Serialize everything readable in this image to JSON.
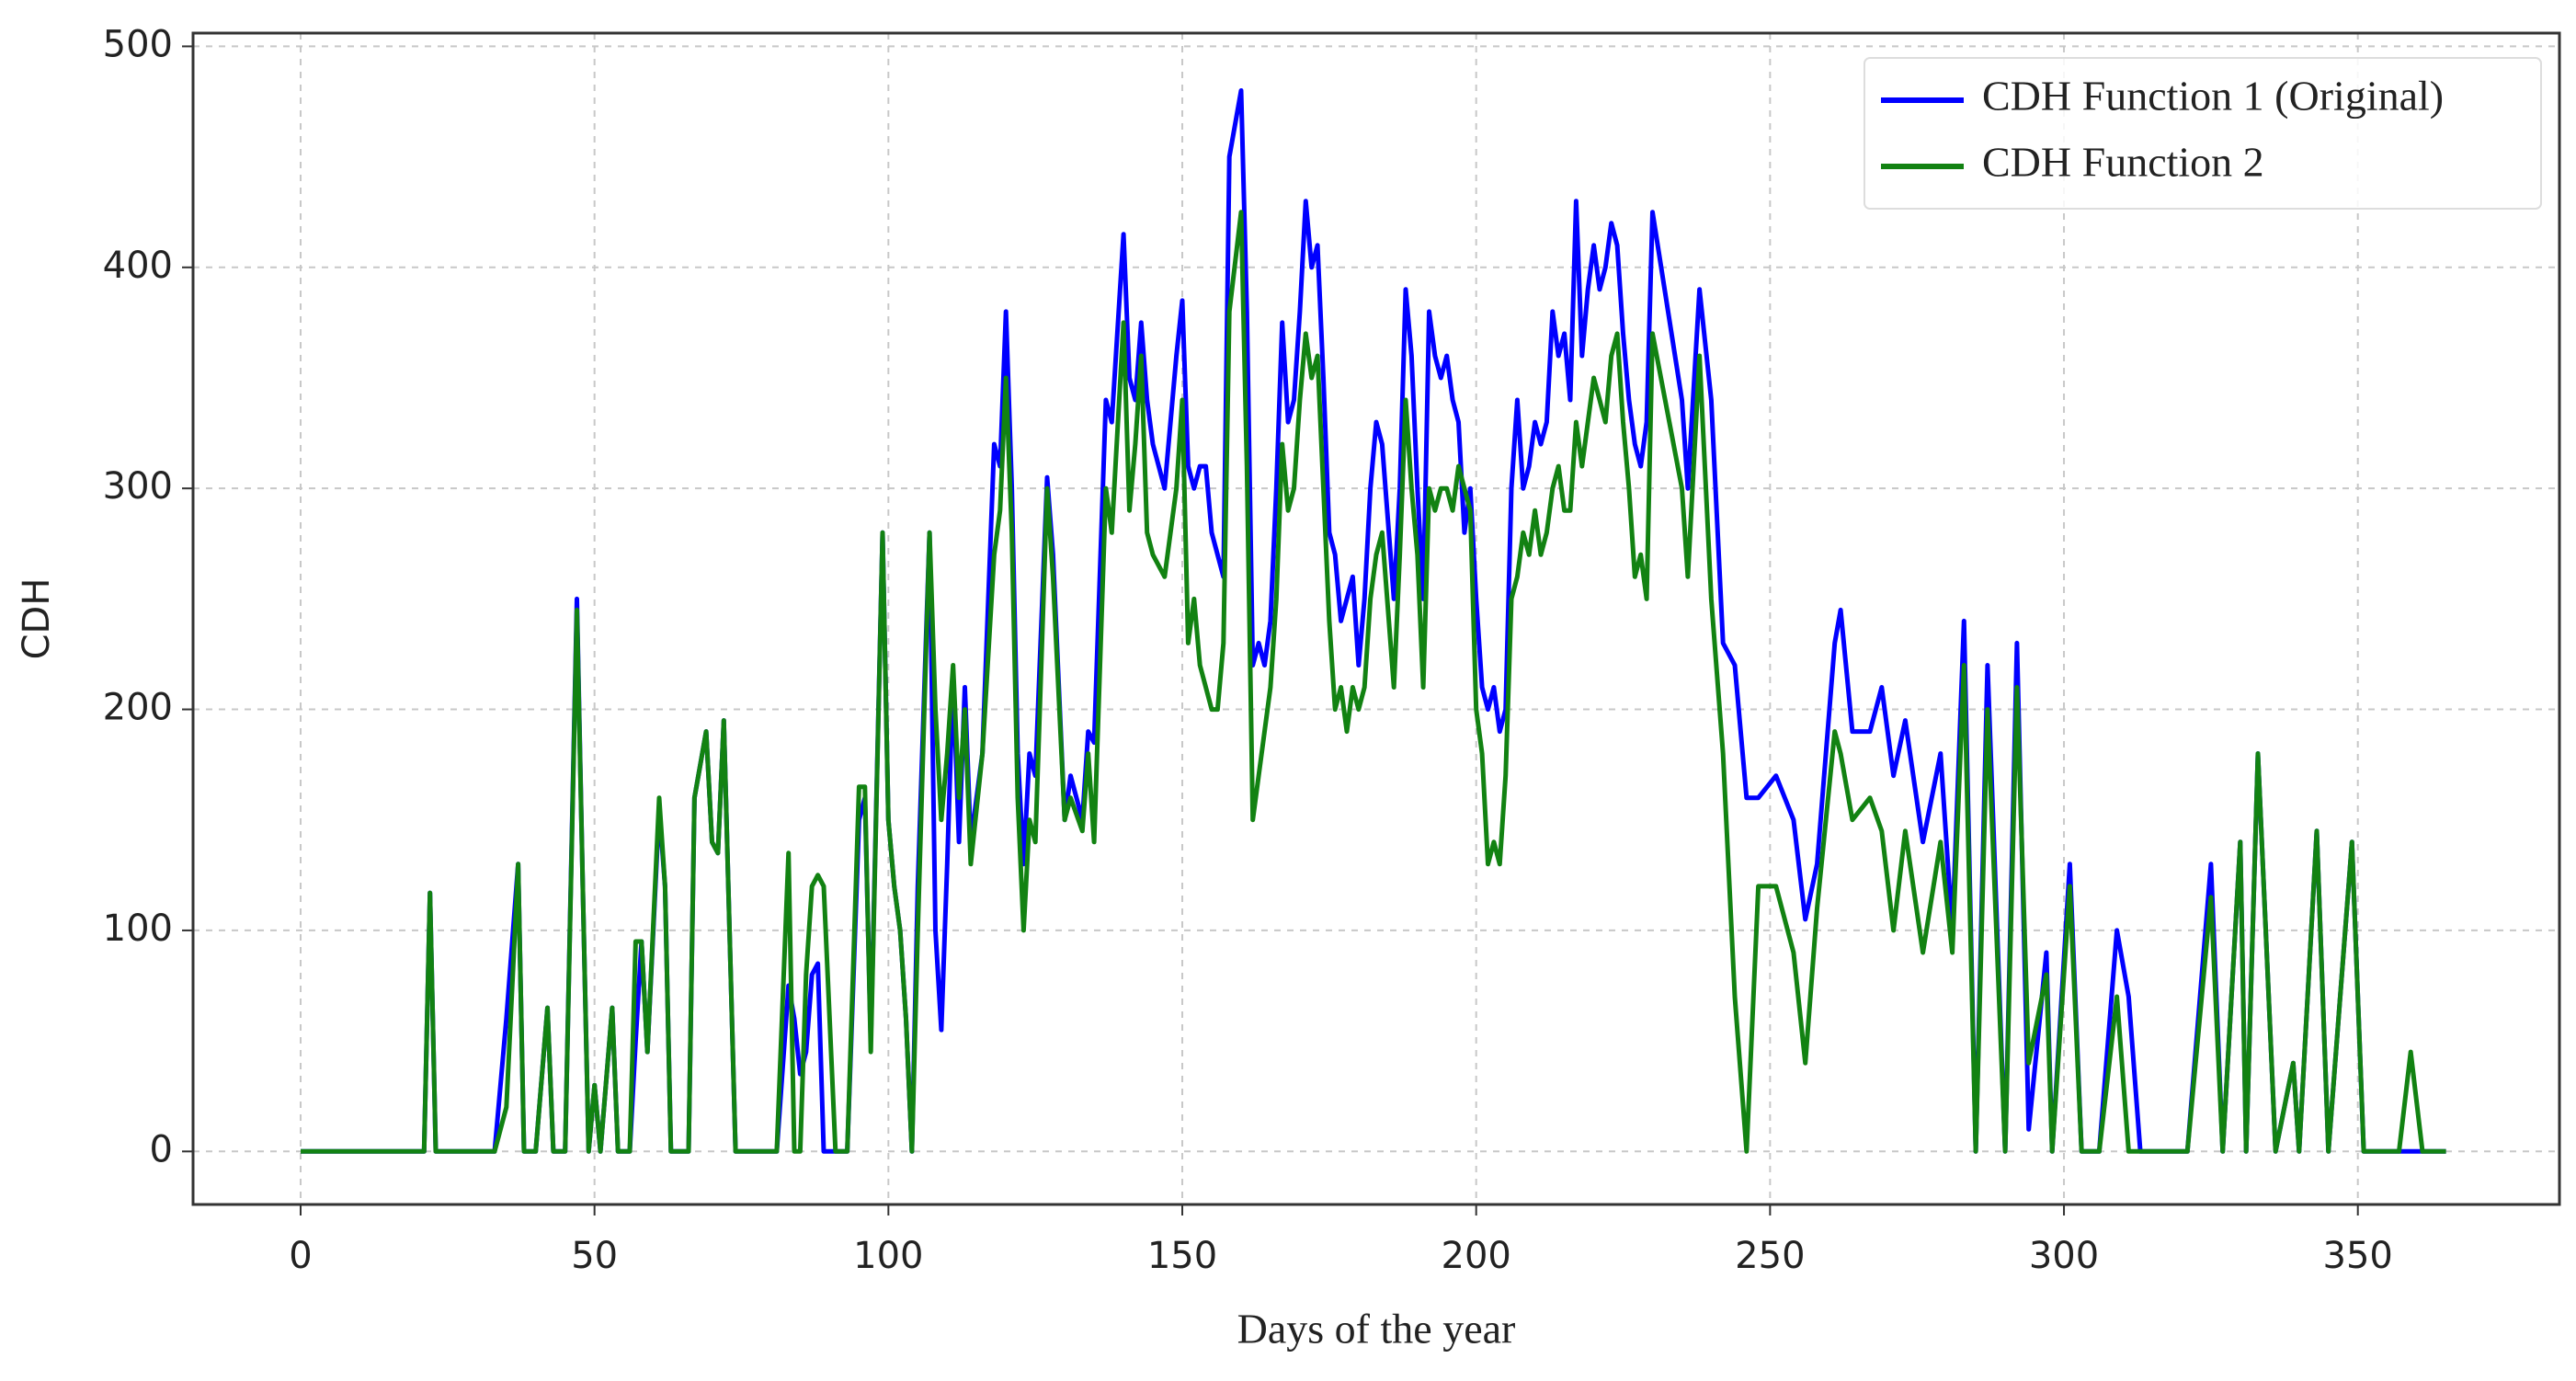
{
  "chart_data": {
    "type": "line",
    "xlabel": "Days of the year",
    "ylabel": "CDH",
    "x": [
      0,
      21,
      22,
      23,
      33,
      35,
      37,
      38,
      40,
      42,
      43,
      45,
      47,
      48,
      49,
      50,
      51,
      53,
      54,
      56,
      57,
      58,
      59,
      61,
      62,
      63,
      66,
      67,
      69,
      70,
      71,
      72,
      74,
      81,
      83,
      84,
      85,
      86,
      87,
      88,
      89,
      91,
      93,
      95,
      96,
      97,
      99,
      100,
      101,
      102,
      103,
      104,
      105,
      107,
      108,
      109,
      110,
      111,
      112,
      113,
      114,
      116,
      118,
      119,
      120,
      121,
      122,
      123,
      124,
      125,
      127,
      128,
      130,
      131,
      133,
      134,
      135,
      137,
      138,
      140,
      141,
      142,
      143,
      144,
      145,
      147,
      148,
      149,
      150,
      151,
      152,
      153,
      154,
      155,
      156,
      157,
      158,
      160,
      161,
      162,
      163,
      164,
      165,
      166,
      167,
      168,
      169,
      170,
      171,
      172,
      173,
      174,
      175,
      176,
      177,
      178,
      179,
      180,
      181,
      182,
      183,
      184,
      186,
      187,
      188,
      189,
      190,
      191,
      192,
      193,
      194,
      195,
      196,
      197,
      198,
      199,
      200,
      201,
      202,
      203,
      204,
      205,
      206,
      207,
      208,
      209,
      210,
      211,
      212,
      213,
      214,
      215,
      216,
      217,
      218,
      219,
      220,
      221,
      222,
      223,
      224,
      225,
      226,
      227,
      228,
      229,
      230,
      235,
      236,
      238,
      240,
      242,
      244,
      246,
      248,
      251,
      254,
      256,
      258,
      261,
      262,
      264,
      267,
      269,
      271,
      273,
      276,
      279,
      281,
      283,
      285,
      287,
      290,
      292,
      294,
      297,
      298,
      301,
      303,
      306,
      309,
      311,
      313,
      321,
      325,
      327,
      330,
      331,
      333,
      336,
      339,
      340,
      343,
      345,
      349,
      351,
      357,
      359,
      361,
      365
    ],
    "series": [
      {
        "name": "CDH Function 1 (Original)",
        "color": "#0000ff",
        "values": [
          0,
          0,
          117,
          0,
          0,
          60,
          130,
          0,
          0,
          65,
          0,
          0,
          250,
          120,
          0,
          30,
          0,
          65,
          0,
          0,
          50,
          95,
          45,
          155,
          120,
          0,
          0,
          160,
          190,
          140,
          135,
          195,
          0,
          0,
          75,
          60,
          35,
          45,
          80,
          85,
          0,
          0,
          0,
          150,
          160,
          50,
          280,
          150,
          120,
          100,
          60,
          0,
          120,
          280,
          100,
          55,
          130,
          215,
          140,
          210,
          140,
          180,
          320,
          310,
          380,
          300,
          180,
          130,
          180,
          170,
          305,
          270,
          150,
          170,
          150,
          190,
          185,
          340,
          330,
          415,
          350,
          340,
          375,
          340,
          320,
          300,
          330,
          360,
          385,
          310,
          300,
          310,
          310,
          280,
          270,
          260,
          450,
          480,
          380,
          220,
          230,
          220,
          240,
          300,
          375,
          330,
          340,
          380,
          430,
          400,
          410,
          350,
          280,
          270,
          240,
          250,
          260,
          220,
          250,
          300,
          330,
          320,
          250,
          300,
          390,
          360,
          300,
          250,
          380,
          360,
          350,
          360,
          340,
          330,
          280,
          300,
          250,
          210,
          200,
          210,
          190,
          200,
          300,
          340,
          300,
          310,
          330,
          320,
          330,
          380,
          360,
          370,
          340,
          430,
          360,
          390,
          410,
          390,
          400,
          420,
          410,
          370,
          340,
          320,
          310,
          330,
          425,
          340,
          300,
          390,
          340,
          230,
          220,
          160,
          160,
          170,
          150,
          105,
          130,
          230,
          245,
          190,
          190,
          210,
          170,
          195,
          140,
          180,
          100,
          240,
          0,
          220,
          0,
          230,
          10,
          90,
          0,
          130,
          0,
          0,
          100,
          70,
          0,
          0,
          130,
          0,
          140,
          0,
          180,
          0,
          40,
          0,
          145,
          0,
          140,
          0,
          0,
          0,
          0,
          0
        ]
      },
      {
        "name": "CDH Function 2",
        "color": "#128212",
        "values": [
          0,
          0,
          117,
          0,
          0,
          20,
          130,
          0,
          0,
          65,
          0,
          0,
          245,
          120,
          0,
          30,
          0,
          65,
          0,
          0,
          95,
          95,
          45,
          160,
          120,
          0,
          0,
          160,
          190,
          140,
          135,
          195,
          0,
          0,
          135,
          0,
          0,
          80,
          120,
          125,
          120,
          0,
          0,
          165,
          165,
          45,
          280,
          150,
          120,
          100,
          60,
          0,
          100,
          280,
          200,
          150,
          180,
          220,
          160,
          200,
          130,
          180,
          270,
          290,
          350,
          280,
          160,
          100,
          150,
          140,
          300,
          260,
          150,
          160,
          145,
          180,
          140,
          300,
          280,
          375,
          290,
          320,
          360,
          280,
          270,
          260,
          280,
          300,
          340,
          230,
          250,
          220,
          210,
          200,
          200,
          230,
          380,
          425,
          310,
          150,
          170,
          190,
          210,
          250,
          320,
          290,
          300,
          340,
          370,
          350,
          360,
          300,
          240,
          200,
          210,
          190,
          210,
          200,
          210,
          250,
          270,
          280,
          210,
          270,
          340,
          300,
          270,
          210,
          300,
          290,
          300,
          300,
          290,
          310,
          300,
          290,
          200,
          180,
          130,
          140,
          130,
          170,
          250,
          260,
          280,
          270,
          290,
          270,
          280,
          300,
          310,
          290,
          290,
          330,
          310,
          330,
          350,
          340,
          330,
          360,
          370,
          330,
          300,
          260,
          270,
          250,
          370,
          300,
          260,
          360,
          250,
          180,
          70,
          0,
          120,
          120,
          90,
          40,
          110,
          190,
          180,
          150,
          160,
          145,
          100,
          145,
          90,
          140,
          90,
          220,
          0,
          200,
          0,
          210,
          40,
          80,
          0,
          120,
          0,
          0,
          70,
          0,
          0,
          0,
          115,
          0,
          140,
          0,
          180,
          0,
          40,
          0,
          145,
          0,
          140,
          0,
          0,
          45,
          0,
          0
        ]
      }
    ],
    "xlim": [
      -18.3,
      384.3
    ],
    "ylim": [
      -24,
      506
    ],
    "xticks": [
      0,
      50,
      100,
      150,
      200,
      250,
      300,
      350
    ],
    "yticks": [
      0,
      100,
      200,
      300,
      400,
      500
    ],
    "grid": true,
    "legend": "upper right"
  }
}
